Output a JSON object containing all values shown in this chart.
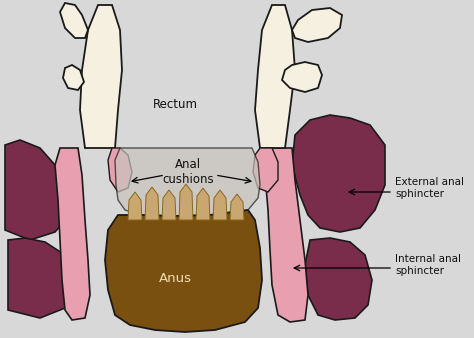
{
  "background_color": "#d8d8d8",
  "colors": {
    "rectum_fill": "#f5f0e0",
    "rectum_stroke": "#1a1a1a",
    "ext_sphincter": "#7a2d4a",
    "int_sphincter": "#e8a0b0",
    "cushion_fill": "#c8c4be",
    "anus_fill": "#7a5010",
    "anal_col_fill": "#c8a870",
    "text_color": "#111111"
  },
  "labels": {
    "rectum": "Rectum",
    "anal_cushions": "Anal\ncushions",
    "anus": "Anus",
    "external_sphincter": "External anal\nsphincter",
    "internal_sphincter": "Internal anal\nsphincter"
  }
}
